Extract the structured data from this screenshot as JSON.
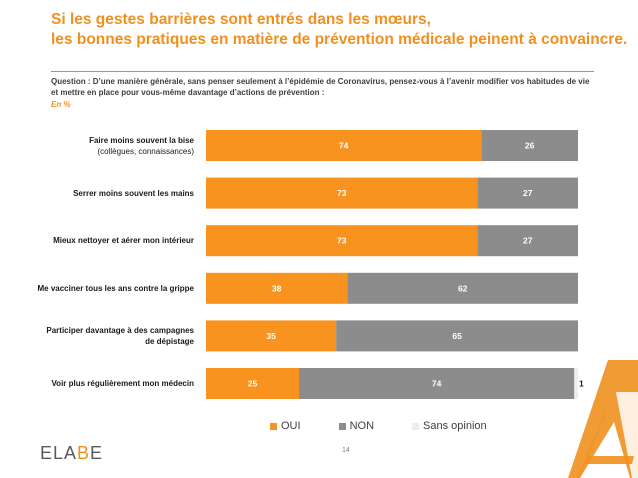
{
  "title": {
    "line1": "Si les gestes barrières sont entrés dans les mœurs,",
    "line2": "les bonnes pratiques en matière de prévention médicale peinent à convaincre."
  },
  "question": "Question : D’une manière générale, sans penser seulement à l’épidémie de Coronavirus, pensez-vous à l’avenir modifier vos habitudes de vie et mettre en place pour vous-même davantage d’actions de prévention :",
  "unit": "En  %",
  "colors": {
    "oui": "#f7931e",
    "non": "#8c8c8c",
    "sans_opinion": "#ededed",
    "accent": "#f0901e"
  },
  "chart_data": {
    "type": "bar",
    "orientation": "horizontal",
    "stacked": true,
    "categories": [
      {
        "line1": "Faire moins souvent la bise",
        "line2": "(collègues, connaissances)"
      },
      {
        "line1": "Serrer moins souvent les mains",
        "line2": ""
      },
      {
        "line1": "Mieux nettoyer et aérer mon intérieur",
        "line2": ""
      },
      {
        "line1": "Me vacciner tous les ans contre la grippe",
        "line2": ""
      },
      {
        "line1": "Participer davantage à des campagnes",
        "line2": "de dépistage"
      },
      {
        "line1": "Voir plus régulièrement mon médecin",
        "line2": ""
      }
    ],
    "series": [
      {
        "name": "OUI",
        "values": [
          74,
          73,
          73,
          38,
          35,
          25
        ]
      },
      {
        "name": "NON",
        "values": [
          26,
          27,
          27,
          62,
          65,
          74
        ]
      },
      {
        "name": "Sans opinion",
        "values": [
          0,
          0,
          0,
          0,
          0,
          1
        ]
      }
    ],
    "xlim": [
      0,
      100
    ],
    "legend_position": "bottom"
  },
  "footer": {
    "logo_main": "ELA",
    "logo_accent": "B",
    "logo_end": "E",
    "page_number": "14"
  }
}
